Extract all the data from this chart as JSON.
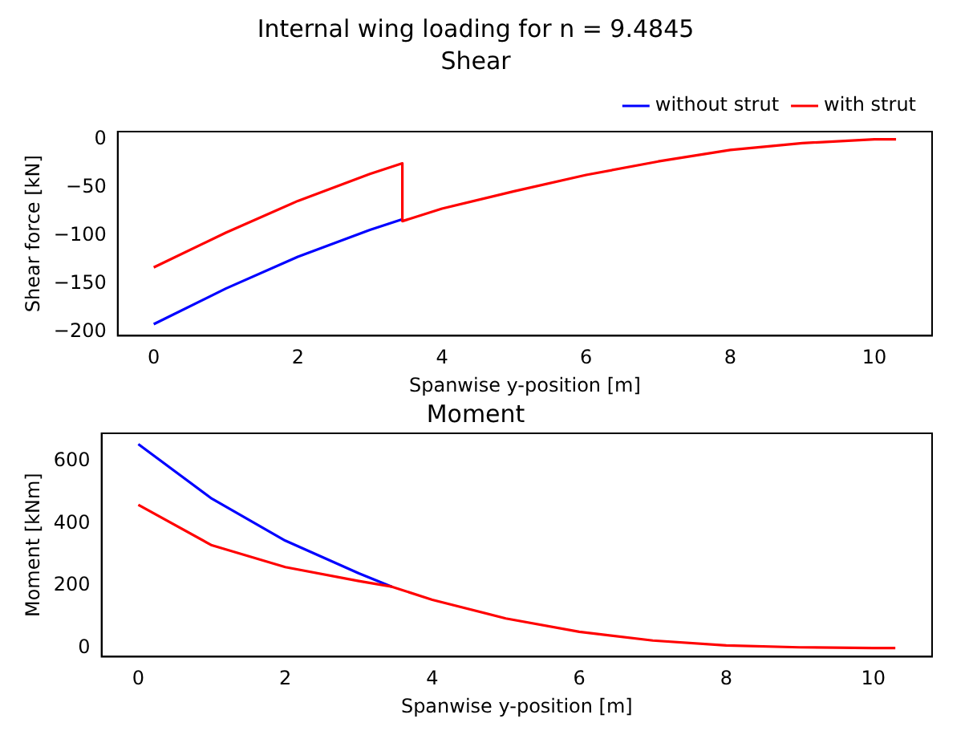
{
  "chart_data": [
    {
      "type": "line",
      "title": "Internal wing loading for n = 9.4845",
      "subtitle": "Shear",
      "xlabel": "Spanwise y-position [m]",
      "ylabel": "Shear force [kN]",
      "xlim": [
        -0.5,
        10.8
      ],
      "xticks": [
        0,
        2,
        4,
        6,
        8,
        10
      ],
      "ylim": [
        -204,
        8
      ],
      "yticks": [
        -200,
        -150,
        -100,
        -50,
        0
      ],
      "legend": "top right",
      "marker": "none",
      "series": [
        {
          "name": "without strut",
          "color": "#0000ff",
          "x": [
            0,
            1,
            2,
            3,
            3.45
          ],
          "values": [
            -192,
            -155,
            -122,
            -94,
            -83
          ]
        },
        {
          "name": "with strut",
          "color": "#ff0000",
          "x": [
            0,
            1,
            2,
            3,
            3.45,
            3.45,
            4,
            5,
            6,
            7,
            8,
            9,
            10,
            10.3
          ],
          "values": [
            -133,
            -97,
            -64,
            -36,
            -25,
            -85,
            -72,
            -54,
            -37,
            -23,
            -11,
            -4,
            0,
            0
          ]
        }
      ]
    },
    {
      "type": "line",
      "title": "Moment",
      "xlabel": "Spanwise y-position [m]",
      "ylabel": "Moment [kNm]",
      "xlim": [
        -0.5,
        10.8
      ],
      "xticks": [
        0,
        2,
        4,
        6,
        8,
        10
      ],
      "ylim": [
        -28,
        690
      ],
      "yticks": [
        0,
        200,
        400,
        600
      ],
      "marker": "none",
      "series": [
        {
          "color": "#0000ff",
          "x": [
            0,
            1,
            2,
            3,
            3.45
          ],
          "values": [
            655,
            480,
            345,
            240,
            197
          ]
        },
        {
          "color": "#ff0000",
          "x": [
            0,
            1,
            2,
            3,
            3.45,
            4,
            5,
            6,
            7,
            8,
            9,
            10,
            10.3
          ],
          "values": [
            460,
            330,
            260,
            215,
            197,
            155,
            95,
            52,
            24,
            8,
            2,
            0,
            0
          ]
        }
      ]
    }
  ]
}
